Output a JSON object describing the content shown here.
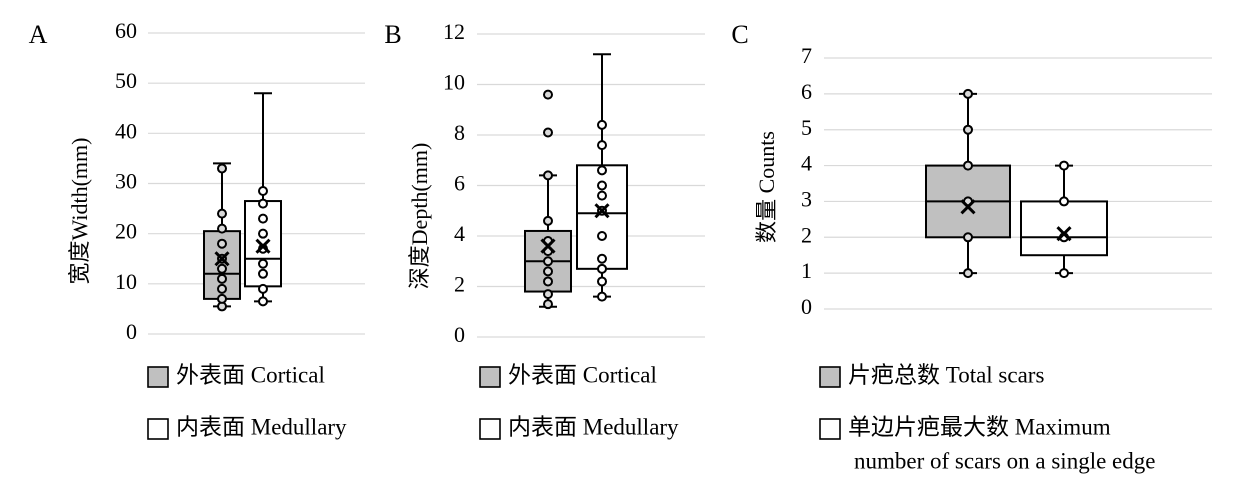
{
  "chart_data": [
    {
      "panel": "A",
      "type": "box",
      "title": "",
      "xlabel": "",
      "ylabel": "宽度Width(mm)",
      "ylim": [
        0,
        60
      ],
      "yticks": [
        0,
        10,
        20,
        30,
        40,
        50,
        60
      ],
      "series": [
        {
          "name": "外表面 Cortical",
          "fill": "#c0c0c0",
          "min": 5.5,
          "q1": 7,
          "median": 12,
          "q3": 20.5,
          "max": 34,
          "mean": 15,
          "points": [
            5.5,
            7,
            9,
            11,
            13,
            15,
            18,
            21,
            24,
            33
          ]
        },
        {
          "name": "内表面 Medullary",
          "fill": "#ffffff",
          "min": 6.5,
          "q1": 9.5,
          "median": 15,
          "q3": 26.5,
          "max": 48,
          "mean": 17.5,
          "points": [
            6.5,
            9,
            12,
            14,
            17,
            20,
            23,
            26,
            28.5
          ]
        }
      ],
      "legend": [
        "外表面 Cortical",
        "内表面 Medullary"
      ]
    },
    {
      "panel": "B",
      "type": "box",
      "title": "",
      "xlabel": "",
      "ylabel": "深度Depth(mm)",
      "ylim": [
        0,
        12
      ],
      "yticks": [
        0,
        2,
        4,
        6,
        8,
        10,
        12
      ],
      "series": [
        {
          "name": "外表面 Cortical",
          "fill": "#c0c0c0",
          "min": 1.2,
          "q1": 1.8,
          "median": 3.0,
          "q3": 4.2,
          "max": 6.4,
          "mean": 3.6,
          "points": [
            1.3,
            1.7,
            2.2,
            2.6,
            3.0,
            3.4,
            3.8,
            4.6,
            6.4,
            8.1,
            9.6
          ]
        },
        {
          "name": "内表面 Medullary",
          "fill": "#ffffff",
          "min": 1.6,
          "q1": 2.7,
          "median": 4.9,
          "q3": 6.8,
          "max": 11.2,
          "mean": 5.0,
          "points": [
            1.6,
            2.2,
            2.7,
            3.1,
            4.0,
            5.0,
            5.6,
            6.0,
            6.6,
            7.6,
            8.4
          ]
        }
      ],
      "legend": [
        "外表面 Cortical",
        "内表面 Medullary"
      ]
    },
    {
      "panel": "C",
      "type": "box",
      "title": "",
      "xlabel": "",
      "ylabel": "数量 Counts",
      "ylim": [
        0,
        7
      ],
      "yticks": [
        0,
        1,
        2,
        3,
        4,
        5,
        6,
        7
      ],
      "series": [
        {
          "name": "片疤总数 Total scars",
          "fill": "#c0c0c0",
          "min": 1,
          "q1": 2,
          "median": 3,
          "q3": 4,
          "max": 6,
          "mean": 2.85,
          "points": [
            1,
            2,
            3,
            4,
            5,
            6
          ]
        },
        {
          "name": "单边片疤最大数 Maximum number of scars on a single edge",
          "fill": "#ffffff",
          "min": 1,
          "q1": 1.5,
          "median": 2,
          "q3": 3,
          "max": 4,
          "mean": 2.1,
          "points": [
            1,
            2,
            3,
            4
          ]
        }
      ],
      "legend": [
        "片疤总数 Total scars",
        [
          "单边片疤最大数 Maximum",
          "number of scars on a single edge"
        ]
      ]
    }
  ]
}
